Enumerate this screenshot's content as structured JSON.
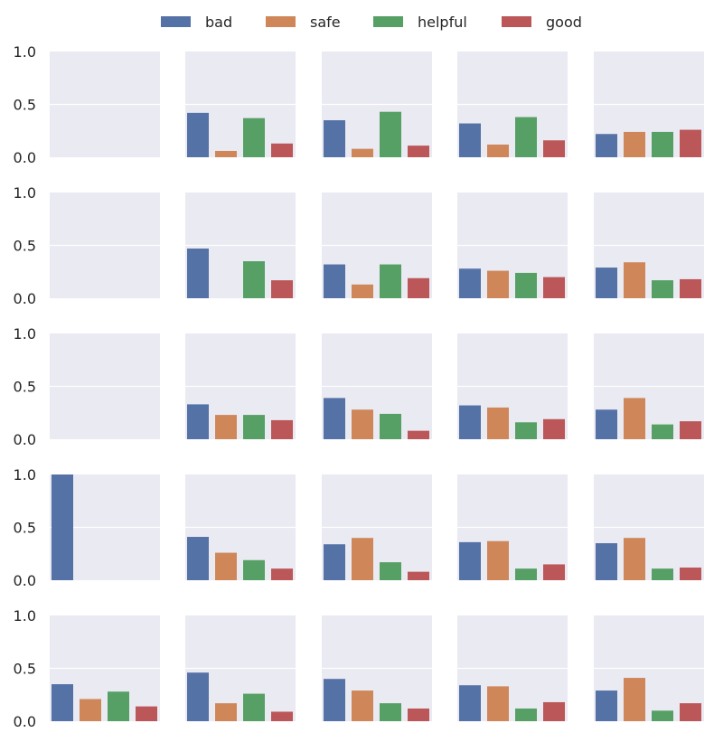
{
  "chart_data": {
    "type": "bar",
    "layout": "5x5 grid of small-multiple bar charts, shared y axis per row",
    "legend": {
      "placement": "top-center",
      "entries": [
        {
          "name": "bad",
          "color": "#5572a6"
        },
        {
          "name": "safe",
          "color": "#cf875a"
        },
        {
          "name": "helpful",
          "color": "#56a065"
        },
        {
          "name": "good",
          "color": "#bb5758"
        }
      ]
    },
    "series_order": [
      "bad",
      "safe",
      "helpful",
      "good"
    ],
    "ylim": [
      0,
      1.0
    ],
    "yticks": [
      {
        "value": 0,
        "label": "0.0"
      },
      {
        "value": 0.5,
        "label": "0.5"
      },
      {
        "value": 1.0,
        "label": "1.0"
      }
    ],
    "xlabel": "",
    "ylabel": "",
    "grid": true,
    "panel_background": "#eaeaf2",
    "panels": [
      [
        [
          0,
          0,
          0,
          0
        ],
        [
          0.42,
          0.06,
          0.37,
          0.13
        ],
        [
          0.35,
          0.08,
          0.43,
          0.11
        ],
        [
          0.32,
          0.12,
          0.38,
          0.16
        ],
        [
          0.22,
          0.24,
          0.24,
          0.26
        ]
      ],
      [
        [
          0,
          0,
          0,
          0
        ],
        [
          0.47,
          0.0,
          0.35,
          0.17
        ],
        [
          0.32,
          0.13,
          0.32,
          0.19
        ],
        [
          0.28,
          0.26,
          0.24,
          0.2
        ],
        [
          0.29,
          0.34,
          0.17,
          0.18
        ]
      ],
      [
        [
          0,
          0,
          0,
          0
        ],
        [
          0.33,
          0.23,
          0.23,
          0.18
        ],
        [
          0.39,
          0.28,
          0.24,
          0.08
        ],
        [
          0.32,
          0.3,
          0.16,
          0.19
        ],
        [
          0.28,
          0.39,
          0.14,
          0.17
        ]
      ],
      [
        [
          1.0,
          0,
          0,
          0
        ],
        [
          0.41,
          0.26,
          0.19,
          0.11
        ],
        [
          0.34,
          0.4,
          0.17,
          0.08
        ],
        [
          0.36,
          0.37,
          0.11,
          0.15
        ],
        [
          0.35,
          0.4,
          0.11,
          0.12
        ]
      ],
      [
        [
          0.35,
          0.21,
          0.28,
          0.14
        ],
        [
          0.46,
          0.17,
          0.26,
          0.09
        ],
        [
          0.4,
          0.29,
          0.17,
          0.12
        ],
        [
          0.34,
          0.33,
          0.12,
          0.18
        ],
        [
          0.29,
          0.41,
          0.1,
          0.17
        ]
      ]
    ]
  }
}
